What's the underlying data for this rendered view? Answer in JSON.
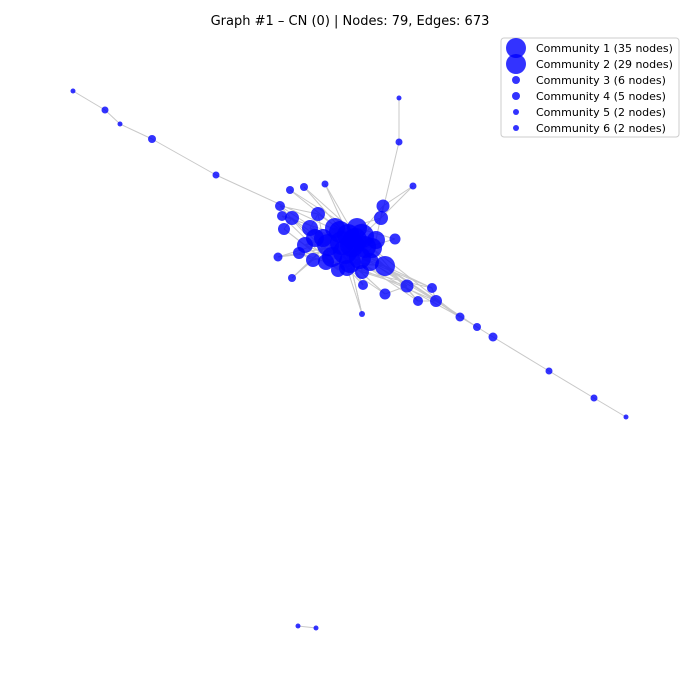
{
  "title": "Graph #1 – CN (0) | Nodes: 79, Edges: 673",
  "colors": {
    "node": "#0000ff",
    "edge": "#c8c8c8",
    "legend_border": "#cccccc"
  },
  "legend": [
    {
      "label": "Community 1 (35 nodes)",
      "size": "xl"
    },
    {
      "label": "Community 2 (29 nodes)",
      "size": "xl"
    },
    {
      "label": "Community 3 (6 nodes)",
      "size": "m"
    },
    {
      "label": "Community 4 (5 nodes)",
      "size": "m"
    },
    {
      "label": "Community 5 (2 nodes)",
      "size": "s"
    },
    {
      "label": "Community 6 (2 nodes)",
      "size": "s"
    }
  ]
}
